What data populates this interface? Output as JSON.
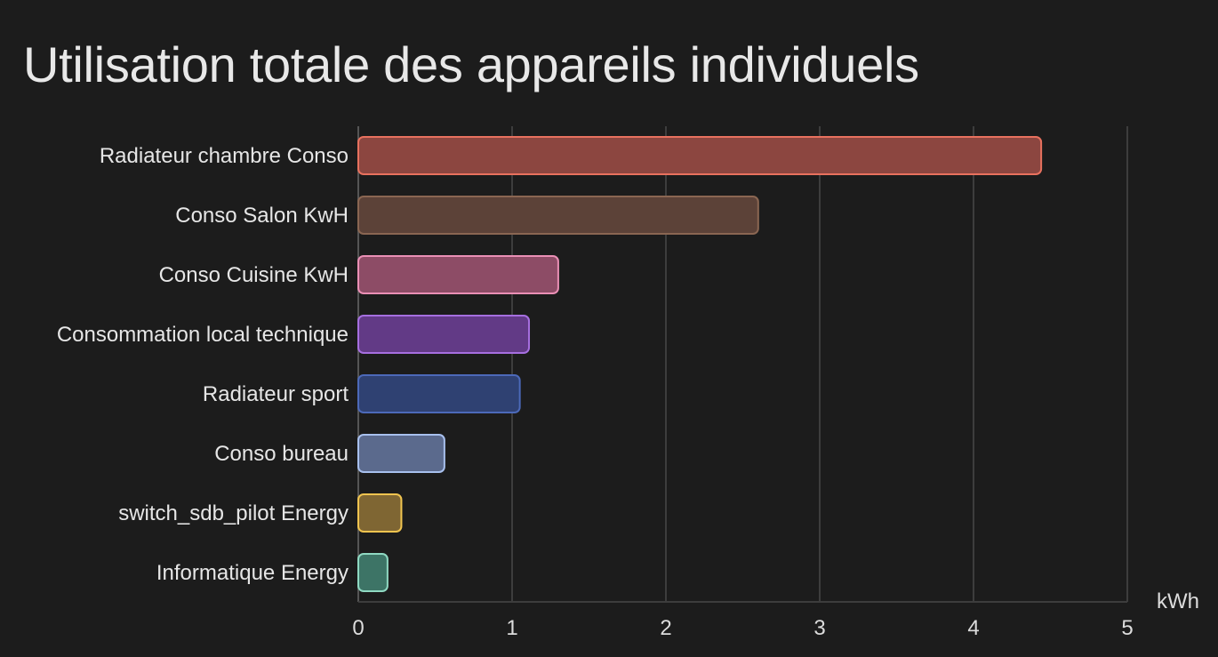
{
  "card": {
    "title": "Utilisation totale des appareils individuels"
  },
  "chart_data": {
    "type": "bar",
    "orientation": "horizontal",
    "title": "Utilisation totale des appareils individuels",
    "unit": "kWh",
    "categories": [
      "Radiateur chambre Conso",
      "Conso Salon KwH",
      "Conso Cuisine KwH",
      "Consommation local technique",
      "Radiateur sport",
      "Conso bureau",
      "switch_sdb_pilot Energy",
      "Informatique Energy"
    ],
    "values": [
      4.44,
      2.6,
      1.3,
      1.11,
      1.05,
      0.56,
      0.28,
      0.19
    ],
    "colors": [
      {
        "fill": "#8c4640",
        "stroke": "#e8715e"
      },
      {
        "fill": "#5c4238",
        "stroke": "#8a6652"
      },
      {
        "fill": "#8d4c66",
        "stroke": "#ea8fb5"
      },
      {
        "fill": "#623a86",
        "stroke": "#a66fe0"
      },
      {
        "fill": "#2f4172",
        "stroke": "#4c69b9"
      },
      {
        "fill": "#5b6a8d",
        "stroke": "#a8c0ee"
      },
      {
        "fill": "#7f6633",
        "stroke": "#f0c44f"
      },
      {
        "fill": "#3d7466",
        "stroke": "#8fd9c2"
      }
    ],
    "xlim": [
      0,
      5
    ],
    "xticks": [
      "0",
      "1",
      "2",
      "3",
      "4",
      "5"
    ],
    "grid": true,
    "legend": "none"
  }
}
